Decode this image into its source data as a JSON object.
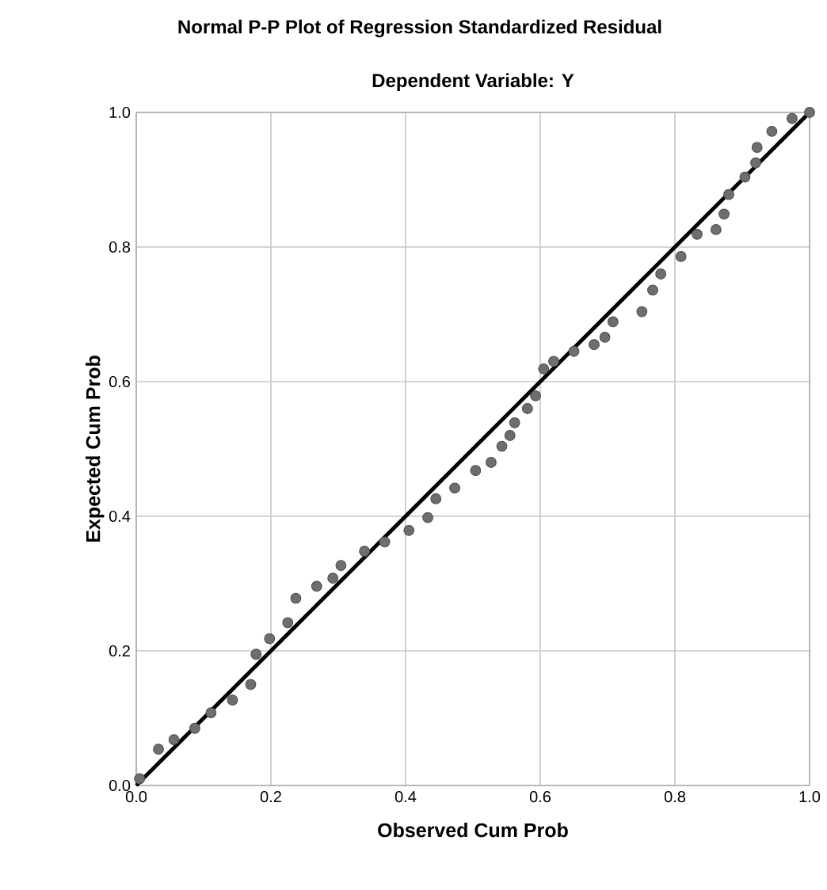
{
  "chart_data": {
    "type": "scatter",
    "title": "Normal P-P Plot of Regression Standardized Residual",
    "subtitle": "Dependent Variable: Y",
    "xlabel": "Observed Cum Prob",
    "ylabel": "Expected Cum Prob",
    "xlim": [
      0,
      1
    ],
    "ylim": [
      0,
      1
    ],
    "xticks": [
      {
        "value": 0,
        "label": "0.0"
      },
      0.2,
      0.4,
      0.6,
      0.8,
      {
        "value": 1,
        "label": "1.0"
      }
    ],
    "yticks": [
      {
        "value": 0,
        "label": "0.0"
      },
      0.2,
      0.4,
      0.6,
      0.8,
      {
        "value": 1,
        "label": "1.0"
      }
    ],
    "grid": true,
    "series": [
      {
        "marker": "circle",
        "color": "#6e6e6e",
        "x": [
          0.005,
          0.033,
          0.056,
          0.087,
          0.111,
          0.143,
          0.17,
          0.178,
          0.198,
          0.225,
          0.237,
          0.268,
          0.292,
          0.304,
          0.339,
          0.369,
          0.405,
          0.433,
          0.445,
          0.473,
          0.504,
          0.527,
          0.543,
          0.555,
          0.562,
          0.581,
          0.593,
          0.605,
          0.62,
          0.65,
          0.68,
          0.696,
          0.708,
          0.751,
          0.767,
          0.779,
          0.809,
          0.833,
          0.861,
          0.873,
          0.88,
          0.904,
          0.92,
          0.922,
          0.944,
          0.974,
          1.0
        ],
        "values": [
          0.01,
          0.054,
          0.068,
          0.085,
          0.108,
          0.127,
          0.15,
          0.195,
          0.218,
          0.242,
          0.278,
          0.296,
          0.308,
          0.327,
          0.348,
          0.362,
          0.379,
          0.398,
          0.426,
          0.442,
          0.468,
          0.48,
          0.504,
          0.52,
          0.539,
          0.56,
          0.579,
          0.619,
          0.63,
          0.645,
          0.655,
          0.666,
          0.689,
          0.704,
          0.736,
          0.76,
          0.786,
          0.819,
          0.826,
          0.849,
          0.878,
          0.904,
          0.925,
          0.948,
          0.972,
          0.991,
          1.0
        ]
      },
      {
        "type": "line",
        "marker": "none",
        "color": "#000000",
        "x": [
          0,
          1
        ],
        "values": [
          0,
          1
        ]
      }
    ]
  }
}
